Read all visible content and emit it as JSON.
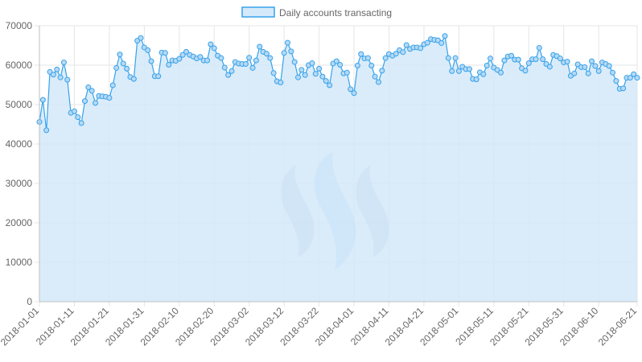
{
  "chart_data": {
    "type": "area",
    "legend": {
      "position": "top",
      "entries": [
        "Daily accounts transacting"
      ]
    },
    "series": [
      {
        "name": "Daily accounts transacting",
        "color": "#36a2eb",
        "fill": "#d4e9f9"
      }
    ],
    "y_ticks": [
      "0",
      "10000",
      "20000",
      "30000",
      "40000",
      "50000",
      "60000",
      "70000"
    ],
    "ylim": [
      0,
      70000
    ],
    "x_ticks": [
      "2018-01-01",
      "2018-01-11",
      "2018-01-21",
      "2018-01-31",
      "2018-02-10",
      "2018-02-20",
      "2018-03-02",
      "2018-03-12",
      "2018-03-22",
      "2018-04-01",
      "2018-04-11",
      "2018-04-21",
      "2018-05-01",
      "2018-05-11",
      "2018-05-21",
      "2018-05-31",
      "2018-06-10",
      "2018-06-21"
    ],
    "x_range": [
      "2018-01-01",
      "2018-06-21"
    ],
    "grid": true,
    "watermark": "steem-logo",
    "values": [
      45600,
      51200,
      43500,
      58300,
      57600,
      58900,
      56900,
      60700,
      56300,
      47900,
      48300,
      46800,
      45300,
      50900,
      54400,
      53500,
      50400,
      52200,
      52100,
      52000,
      51700,
      54900,
      59300,
      62700,
      60400,
      59100,
      57000,
      56500,
      66200,
      66900,
      64500,
      63800,
      61000,
      57200,
      57200,
      63200,
      63100,
      60100,
      61200,
      61100,
      61600,
      62600,
      63400,
      62600,
      62200,
      61700,
      62100,
      61200,
      61200,
      65300,
      64300,
      62400,
      61800,
      59400,
      57500,
      58500,
      60800,
      60400,
      60300,
      60300,
      61900,
      59300,
      61200,
      64700,
      63400,
      62900,
      61800,
      58000,
      55900,
      55600,
      63100,
      65700,
      63500,
      60800,
      56900,
      58800,
      57500,
      60000,
      60500,
      57800,
      59100,
      57100,
      56000,
      54900,
      60400,
      61000,
      60100,
      57900,
      58100,
      53900,
      52900,
      59900,
      62800,
      61700,
      61800,
      59900,
      57100,
      55700,
      58600,
      61800,
      62800,
      62400,
      62900,
      63800,
      63300,
      65100,
      64100,
      64500,
      64500,
      64300,
      65300,
      65700,
      66600,
      66400,
      66300,
      65600,
      67400,
      61800,
      58500,
      61800,
      58500,
      59600,
      59000,
      59000,
      56500,
      56400,
      58200,
      57700,
      59900,
      61700,
      59400,
      58800,
      58100,
      61200,
      62200,
      62400,
      61400,
      61400,
      59200,
      58600,
      60500,
      61500,
      61500,
      64400,
      61500,
      60300,
      59600,
      62600,
      62300,
      61700,
      60700,
      60900,
      57300,
      57900,
      60200,
      59500,
      59500,
      57900,
      61000,
      59800,
      58500,
      60700,
      60300,
      59800,
      58100,
      56000,
      54000,
      54100,
      56800,
      56800,
      57700,
      56800
    ]
  }
}
